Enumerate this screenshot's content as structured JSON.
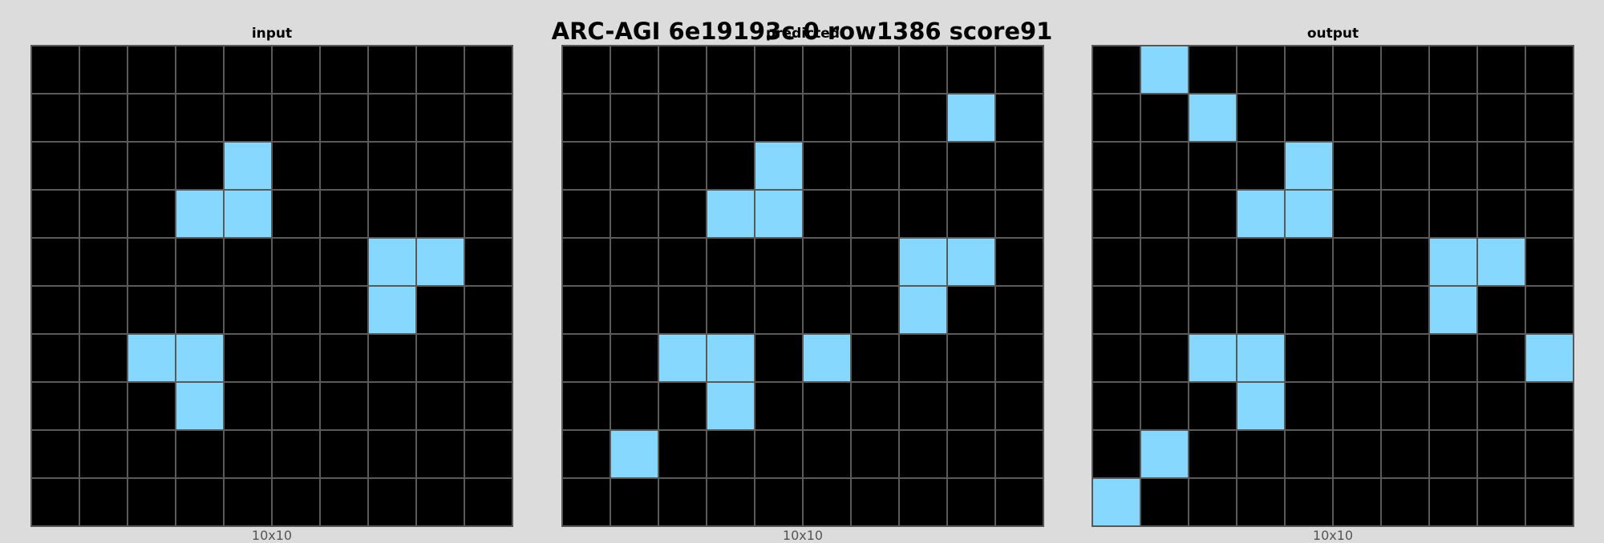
{
  "title": "ARC-AGI 6e19193c 0 row1386 score91",
  "colors": {
    "background": "#dcdcdc",
    "cell_empty": "#000000",
    "cell_filled": "#87d8fe",
    "grid_line": "#5a5a5a"
  },
  "panels": [
    {
      "label": "input",
      "size_label": "10x10",
      "grid": [
        [
          0,
          0,
          0,
          0,
          0,
          0,
          0,
          0,
          0,
          0
        ],
        [
          0,
          0,
          0,
          0,
          0,
          0,
          0,
          0,
          0,
          0
        ],
        [
          0,
          0,
          0,
          0,
          8,
          0,
          0,
          0,
          0,
          0
        ],
        [
          0,
          0,
          0,
          8,
          8,
          0,
          0,
          0,
          0,
          0
        ],
        [
          0,
          0,
          0,
          0,
          0,
          0,
          0,
          8,
          8,
          0
        ],
        [
          0,
          0,
          0,
          0,
          0,
          0,
          0,
          8,
          0,
          0
        ],
        [
          0,
          0,
          8,
          8,
          0,
          0,
          0,
          0,
          0,
          0
        ],
        [
          0,
          0,
          0,
          8,
          0,
          0,
          0,
          0,
          0,
          0
        ],
        [
          0,
          0,
          0,
          0,
          0,
          0,
          0,
          0,
          0,
          0
        ],
        [
          0,
          0,
          0,
          0,
          0,
          0,
          0,
          0,
          0,
          0
        ]
      ]
    },
    {
      "label": "predicted",
      "size_label": "10x10",
      "grid": [
        [
          0,
          0,
          0,
          0,
          0,
          0,
          0,
          0,
          0,
          0
        ],
        [
          0,
          0,
          0,
          0,
          0,
          0,
          0,
          0,
          8,
          0
        ],
        [
          0,
          0,
          0,
          0,
          8,
          0,
          0,
          0,
          0,
          0
        ],
        [
          0,
          0,
          0,
          8,
          8,
          0,
          0,
          0,
          0,
          0
        ],
        [
          0,
          0,
          0,
          0,
          0,
          0,
          0,
          8,
          8,
          0
        ],
        [
          0,
          0,
          0,
          0,
          0,
          0,
          0,
          8,
          0,
          0
        ],
        [
          0,
          0,
          8,
          8,
          0,
          8,
          0,
          0,
          0,
          0
        ],
        [
          0,
          0,
          0,
          8,
          0,
          0,
          0,
          0,
          0,
          0
        ],
        [
          0,
          8,
          0,
          0,
          0,
          0,
          0,
          0,
          0,
          0
        ],
        [
          0,
          0,
          0,
          0,
          0,
          0,
          0,
          0,
          0,
          0
        ]
      ]
    },
    {
      "label": "output",
      "size_label": "10x10",
      "grid": [
        [
          0,
          8,
          0,
          0,
          0,
          0,
          0,
          0,
          0,
          0
        ],
        [
          0,
          0,
          8,
          0,
          0,
          0,
          0,
          0,
          0,
          0
        ],
        [
          0,
          0,
          0,
          0,
          8,
          0,
          0,
          0,
          0,
          0
        ],
        [
          0,
          0,
          0,
          8,
          8,
          0,
          0,
          0,
          0,
          0
        ],
        [
          0,
          0,
          0,
          0,
          0,
          0,
          0,
          8,
          8,
          0
        ],
        [
          0,
          0,
          0,
          0,
          0,
          0,
          0,
          8,
          0,
          0
        ],
        [
          0,
          0,
          8,
          8,
          0,
          0,
          0,
          0,
          0,
          8
        ],
        [
          0,
          0,
          0,
          8,
          0,
          0,
          0,
          0,
          0,
          0
        ],
        [
          0,
          8,
          0,
          0,
          0,
          0,
          0,
          0,
          0,
          0
        ],
        [
          8,
          0,
          0,
          0,
          0,
          0,
          0,
          0,
          0,
          0
        ]
      ]
    }
  ]
}
